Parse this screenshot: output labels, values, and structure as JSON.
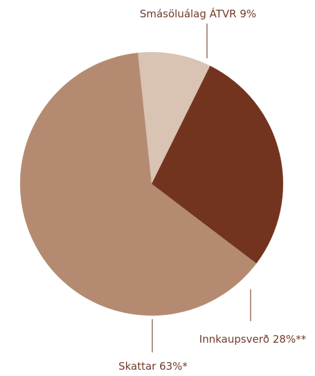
{
  "chart_data": {
    "type": "pie",
    "start_angle_deg": -6,
    "slices": [
      {
        "label": "Smásöluálag ÁTVR 9%",
        "value": 9,
        "color": "#d9c3b2"
      },
      {
        "label": "Innkaupsverð 28%**",
        "value": 28,
        "color": "#73341f"
      },
      {
        "label": "Skattar 63%*",
        "value": 63,
        "color": "#b48b71"
      }
    ],
    "title": "",
    "legend": "none"
  }
}
